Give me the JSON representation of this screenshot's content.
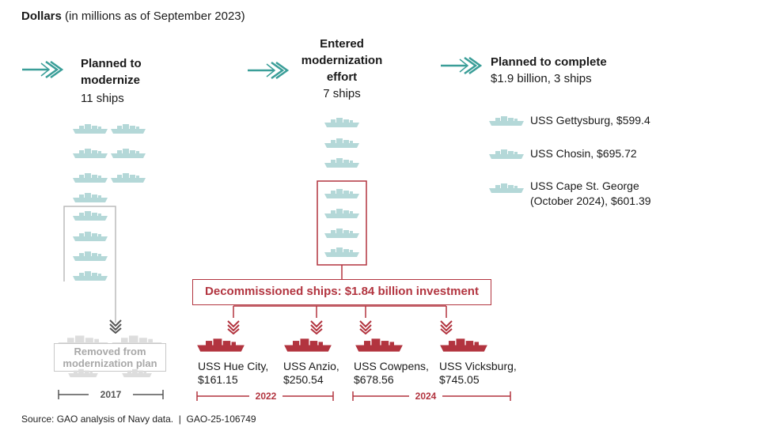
{
  "header": {
    "bold": "Dollars",
    "rest": " (in millions as of September 2023)"
  },
  "col1": {
    "title": "Planned to\nmodernize",
    "count": "11 ships"
  },
  "col2": {
    "title": "Entered\nmodernization\neffort",
    "count": "7 ships"
  },
  "col3": {
    "title": "Planned to complete",
    "subtitle": "$1.9 billion, 3 ships"
  },
  "completed_ships": [
    {
      "label": "USS Gettysburg, $599.4"
    },
    {
      "label": "USS Chosin, $695.72"
    },
    {
      "label": "USS Cape St. George\n(October 2024), $601.39"
    }
  ],
  "decommissioned": {
    "label": "Decommissioned ships: $1.84 billion investment"
  },
  "decommissioned_ships": [
    {
      "name": "USS Hue City,",
      "amount": "$161.15"
    },
    {
      "name": "USS Anzio,",
      "amount": "$250.54"
    },
    {
      "name": "USS Cowpens,",
      "amount": "$678.56"
    },
    {
      "name": "USS Vicksburg,",
      "amount": "$745.05"
    }
  ],
  "removed": {
    "label": "Removed from\nmodernization plan"
  },
  "years": {
    "y2017": "2017",
    "y2022": "2022",
    "y2024": "2024"
  },
  "source": "Source: GAO analysis of Navy data.  |  GAO-25-106749",
  "colors": {
    "teal": "#3a9e98",
    "ship_teal": "#b4d8d8",
    "red": "#b2343f",
    "gray": "#c8c8c8"
  },
  "icons": {
    "arrow": "chevron-arrow-icon",
    "ship": "ship-icon"
  }
}
